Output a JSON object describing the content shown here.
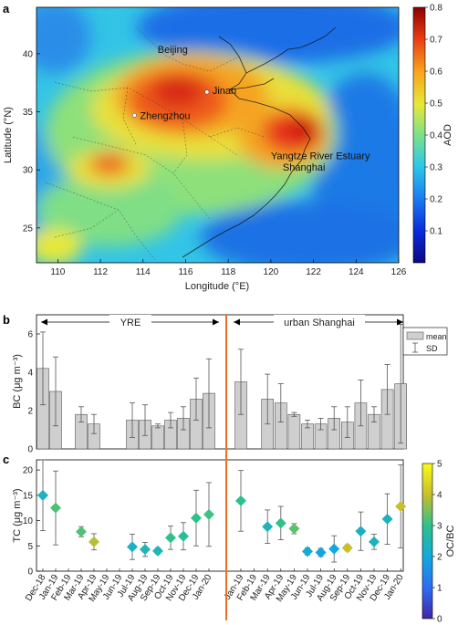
{
  "panels": {
    "a": "a",
    "b": "b",
    "c": "c"
  },
  "chart_data": [
    {
      "type": "heatmap",
      "panel": "a",
      "xlabel": "Longitude (°E)",
      "ylabel": "Latitude (°N)",
      "xlim": [
        109,
        126
      ],
      "ylim": [
        22,
        44
      ],
      "xticks": [
        "110",
        "112",
        "114",
        "116",
        "118",
        "120",
        "122",
        "124",
        "126"
      ],
      "yticks": [
        "25",
        "30",
        "35",
        "40"
      ],
      "colorbar": {
        "label": "AOD",
        "range": [
          0,
          0.8
        ],
        "ticks": [
          "0.1",
          "0.2",
          "0.3",
          "0.4",
          "0.5",
          "0.6",
          "0.7",
          "0.8"
        ]
      },
      "cities": [
        {
          "name": "Beijing",
          "lon": 116.4,
          "lat": 39.9,
          "marker": false
        },
        {
          "name": "Jinan",
          "lon": 117.0,
          "lat": 36.7,
          "marker": true
        },
        {
          "name": "Zhengzhou",
          "lon": 113.6,
          "lat": 34.7,
          "marker": true
        },
        {
          "name": "Yangtze River Estuary",
          "lon": 121.8,
          "lat": 31.4,
          "marker": false
        },
        {
          "name": "Shanghai",
          "lon": 121.5,
          "lat": 31.2,
          "marker": false
        }
      ],
      "aod_hotspots": [
        {
          "lon": 115.5,
          "lat": 35.5,
          "aod": 0.72
        },
        {
          "lon": 121.5,
          "lat": 32.5,
          "aod": 0.75
        },
        {
          "lon": 112.8,
          "lat": 30.3,
          "aod": 0.65
        },
        {
          "lon": 119.5,
          "lat": 33.5,
          "aod": 0.6
        }
      ]
    },
    {
      "type": "bar",
      "panel": "b",
      "ylabel": "BC (μg m⁻³)",
      "ylim": [
        0,
        7
      ],
      "yticks": [
        "0",
        "2",
        "4",
        "6"
      ],
      "regions": [
        "YRE",
        "urban Shanghai"
      ],
      "legend": [
        "mean",
        "SD"
      ],
      "left": {
        "categories": [
          "Dec-18",
          "Jan-19",
          "Feb-19",
          "Mar-19",
          "Apr-19",
          "May-19",
          "Jun-19",
          "Jul-19",
          "Aug-19",
          "Sep-19",
          "Oct-19",
          "Nov-19",
          "Dec-19",
          "Jan-20"
        ],
        "mean": [
          4.2,
          3.0,
          null,
          1.8,
          1.3,
          null,
          null,
          1.5,
          1.5,
          1.2,
          1.5,
          1.6,
          2.6,
          2.9
        ],
        "sd": [
          1.9,
          1.8,
          null,
          0.4,
          0.5,
          null,
          null,
          0.9,
          0.8,
          0.1,
          0.4,
          0.6,
          1.1,
          1.8
        ]
      },
      "right": {
        "categories": [
          "Jan-19",
          "Feb-19",
          "Mar-19",
          "Apr-19",
          "May-19",
          "Jun-19",
          "Jul-19",
          "Aug-19",
          "Sep-19",
          "Oct-19",
          "Nov-19",
          "Dec-19",
          "Jan-20"
        ],
        "mean": [
          3.5,
          null,
          2.6,
          2.4,
          1.8,
          1.3,
          1.3,
          1.6,
          1.4,
          2.4,
          1.8,
          3.1,
          3.4
        ],
        "sd": [
          1.7,
          null,
          1.3,
          1.0,
          0.1,
          0.2,
          0.3,
          0.6,
          0.8,
          1.2,
          0.4,
          1.3,
          3.1
        ]
      }
    },
    {
      "type": "scatter",
      "panel": "c",
      "ylabel": "TC (μg m⁻³)",
      "ylim": [
        0,
        22
      ],
      "yticks": [
        "0",
        "5",
        "10",
        "15",
        "20"
      ],
      "colorbar": {
        "label": "OC/BC",
        "range": [
          0,
          5
        ],
        "ticks": [
          "0",
          "1",
          "2",
          "3",
          "4",
          "5"
        ]
      },
      "left": {
        "categories": [
          "Dec-18",
          "Jan-19",
          "Feb-19",
          "Mar-19",
          "Apr-19",
          "May-19",
          "Jun-19",
          "Jul-19",
          "Aug-19",
          "Sep-19",
          "Oct-19",
          "Nov-19",
          "Dec-19",
          "Jan-20"
        ],
        "tc": [
          15.0,
          12.5,
          null,
          7.8,
          5.8,
          null,
          null,
          4.8,
          4.3,
          4.0,
          6.6,
          6.9,
          10.5,
          11.2
        ],
        "sd": [
          7.0,
          7.3,
          null,
          1.0,
          1.6,
          null,
          null,
          2.5,
          1.4,
          0.6,
          2.3,
          2.7,
          5.5,
          6.3
        ],
        "ocbc": [
          2.4,
          3.2,
          null,
          3.2,
          3.9,
          null,
          null,
          2.3,
          2.5,
          2.5,
          3.0,
          2.8,
          3.0,
          3.1
        ]
      },
      "right": {
        "categories": [
          "Jan-19",
          "Feb-19",
          "Mar-19",
          "Apr-19",
          "May-19",
          "Jun-19",
          "Jul-19",
          "Aug-19",
          "Sep-19",
          "Oct-19",
          "Nov-19",
          "Dec-19",
          "Jan-20"
        ],
        "tc": [
          13.9,
          null,
          8.8,
          9.5,
          8.4,
          3.9,
          3.7,
          4.4,
          4.6,
          7.9,
          5.8,
          10.3,
          12.8
        ],
        "sd": [
          6.0,
          null,
          3.3,
          3.3,
          1.0,
          0.7,
          0.8,
          2.6,
          0.6,
          3.8,
          1.5,
          5.0,
          8.2
        ],
        "ocbc": [
          2.9,
          null,
          2.4,
          3.0,
          3.3,
          2.1,
          1.9,
          2.0,
          4.0,
          2.3,
          2.4,
          2.4,
          4.0
        ]
      }
    }
  ]
}
